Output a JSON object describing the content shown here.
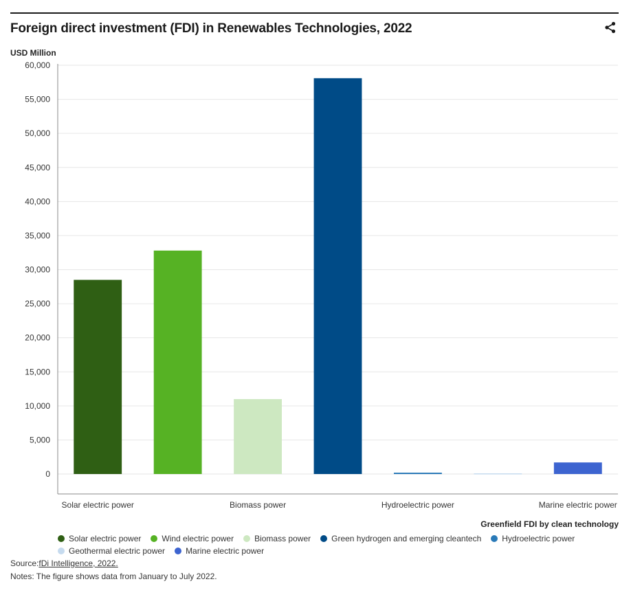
{
  "header": {
    "title": "Foreign direct investment (FDI) in Renewables Technologies, 2022",
    "share_icon": "share-icon"
  },
  "chart_data": {
    "type": "bar",
    "ylabel": "USD Million",
    "xlabel": "Greenfield FDI by clean technology",
    "ylim": [
      0,
      60000
    ],
    "yticks": [
      "0",
      "5,000",
      "10,000",
      "15,000",
      "20,000",
      "25,000",
      "30,000",
      "35,000",
      "40,000",
      "45,000",
      "50,000",
      "55,000",
      "60,000"
    ],
    "categories": [
      "Solar electric power",
      "Wind electric power",
      "Biomass power",
      "Green hydrogen and emerging cleantech",
      "Hydroelectric power",
      "Geothermal electric power",
      "Marine electric power"
    ],
    "values": [
      28500,
      32800,
      11000,
      58100,
      200,
      100,
      1700
    ],
    "colors": [
      "#2f5f14",
      "#56b224",
      "#cde8c1",
      "#004b87",
      "#2a7ab8",
      "#c6dbef",
      "#3d64d0"
    ],
    "shown_tick_labels": [
      "Solar electric power",
      "",
      "Biomass power",
      "",
      "Hydroelectric power",
      "",
      "Marine electric power"
    ],
    "grid": true,
    "legend_position": "bottom-left"
  },
  "legend": [
    {
      "label": "Solar electric power",
      "color": "#2f5f14"
    },
    {
      "label": "Wind electric power",
      "color": "#56b224"
    },
    {
      "label": "Biomass power",
      "color": "#cde8c1"
    },
    {
      "label": "Green hydrogen and emerging cleantech",
      "color": "#004b87"
    },
    {
      "label": "Hydroelectric power",
      "color": "#2a7ab8"
    },
    {
      "label": "Geothermal electric power",
      "color": "#c6dbef"
    },
    {
      "label": "Marine electric power",
      "color": "#3d64d0"
    }
  ],
  "footer": {
    "source_prefix": "Source:",
    "source_link": "fDi Intelligence, 2022.",
    "notes": "Notes: The figure shows data from January to July 2022."
  }
}
